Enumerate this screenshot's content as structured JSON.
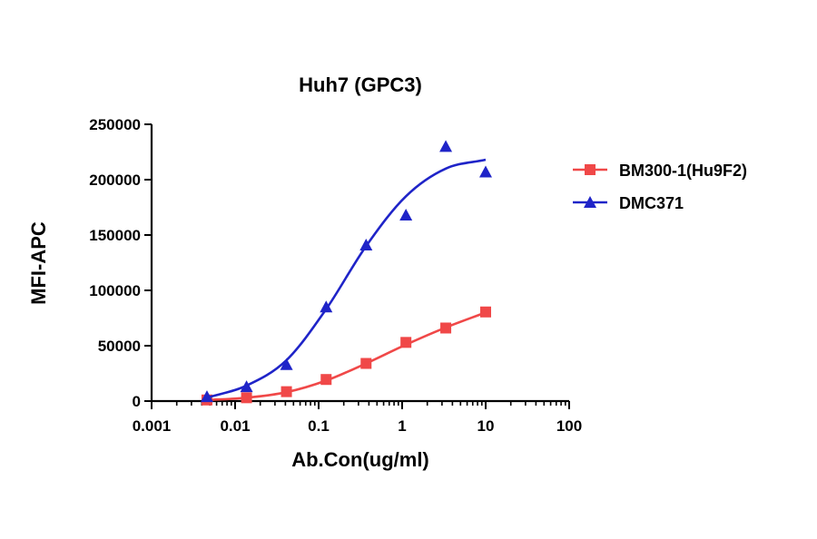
{
  "chart_data": {
    "type": "scatter",
    "title": "Huh7 (GPC3)",
    "xlabel": "Ab.Con(ug/ml)",
    "ylabel": "MFI-APC",
    "x_scale": "log",
    "xlim": [
      0.001,
      100
    ],
    "ylim": [
      0,
      250000
    ],
    "x_ticks": [
      "0.001",
      "0.01",
      "0.1",
      "1",
      "10",
      "100"
    ],
    "y_ticks": [
      "0",
      "50000",
      "100000",
      "150000",
      "200000",
      "250000"
    ],
    "legend_position": "right",
    "grid": false,
    "series": [
      {
        "name": "BM300-1(Hu9F2)",
        "color": "#f04848",
        "marker": "square",
        "x": [
          0.0046,
          0.0137,
          0.0412,
          0.123,
          0.37,
          1.11,
          3.33,
          10
        ],
        "y": [
          1000,
          3000,
          8500,
          19500,
          34000,
          53000,
          66000,
          80500
        ]
      },
      {
        "name": "DMC371",
        "color": "#1f24c8",
        "marker": "triangle",
        "x": [
          0.0046,
          0.0137,
          0.0412,
          0.123,
          0.37,
          1.11,
          3.33,
          10
        ],
        "y": [
          4000,
          13000,
          33000,
          85000,
          141000,
          168000,
          230000,
          207000
        ]
      }
    ]
  }
}
